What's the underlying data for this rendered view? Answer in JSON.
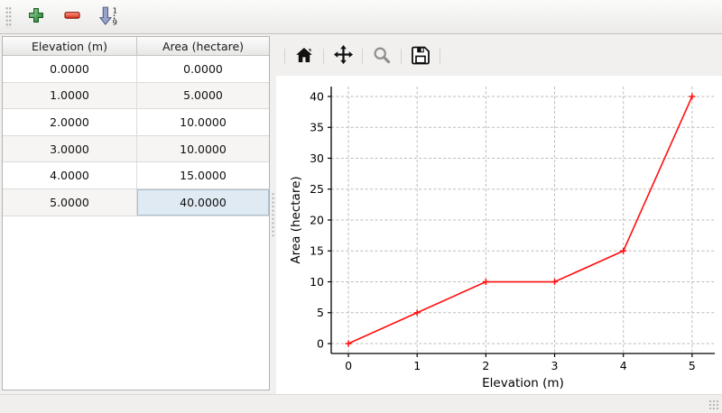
{
  "window": {
    "background": "#f1f0ef",
    "accent_selection_color": "#dfeaf2"
  },
  "toolbar": {
    "buttons": [
      {
        "name": "add-row",
        "icon": "plus-icon",
        "color": "#2e8540"
      },
      {
        "name": "remove-row",
        "icon": "minus-icon",
        "color": "#e2291b"
      },
      {
        "name": "sort-rows",
        "icon": "sort-ascending-icon",
        "top_digit": "1",
        "bottom_digit": "9"
      }
    ]
  },
  "table": {
    "columns": [
      "Elevation (m)",
      "Area (hectare)"
    ],
    "rows": [
      [
        "0.0000",
        "0.0000"
      ],
      [
        "1.0000",
        "5.0000"
      ],
      [
        "2.0000",
        "10.0000"
      ],
      [
        "3.0000",
        "10.0000"
      ],
      [
        "4.0000",
        "15.0000"
      ],
      [
        "5.0000",
        "40.0000"
      ]
    ],
    "selected_cell": {
      "row": 5,
      "col": 1
    }
  },
  "plot_toolbar": {
    "buttons": [
      {
        "name": "home",
        "icon": "home-icon",
        "color": "#111111"
      },
      {
        "name": "pan",
        "icon": "pan-arrows-icon",
        "color": "#111111"
      },
      {
        "name": "zoom",
        "icon": "magnifier-icon",
        "color": "#8f8f8f"
      },
      {
        "name": "save",
        "icon": "floppy-save-icon",
        "color": "#111111"
      }
    ]
  },
  "chart_data": {
    "type": "line",
    "x": [
      0,
      1,
      2,
      3,
      4,
      5
    ],
    "series": [
      {
        "name": "Area",
        "values": [
          0,
          5,
          10,
          10,
          15,
          40
        ],
        "color": "#ff0f0f",
        "marker": "+"
      }
    ],
    "title": "",
    "xlabel": "Elevation (m)",
    "ylabel": "Area (hectare)",
    "xticks": [
      0,
      1,
      2,
      3,
      4,
      5
    ],
    "yticks": [
      0,
      5,
      10,
      15,
      20,
      25,
      30,
      35,
      40
    ],
    "xlim": [
      -0.25,
      5.33
    ],
    "ylim": [
      -1.6,
      41.6
    ],
    "grid": true,
    "grid_style": "dashed",
    "grid_color": "#bbbbbb",
    "legend": false
  }
}
